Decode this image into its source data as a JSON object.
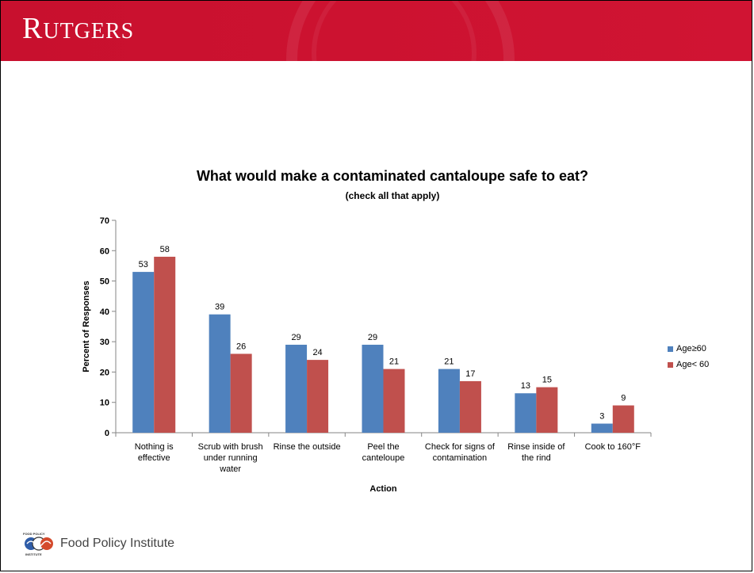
{
  "header": {
    "logo_text": "RUTGERS",
    "logo_first": "R",
    "logo_rest": "UTGERS"
  },
  "footer": {
    "institute": "Food Policy Institute",
    "logo_top": "FOOD POLICY",
    "logo_bottom": "INSTITUTE"
  },
  "colors": {
    "banner": "#c8102e",
    "series1": "#4f81bd",
    "series2": "#c0504d"
  },
  "chart_data": {
    "type": "bar",
    "title": "What would make a contaminated cantaloupe safe to eat?",
    "subtitle": "(check all that apply)",
    "xlabel": "Action",
    "ylabel": "Percent of Responses",
    "ylim": [
      0,
      70
    ],
    "yticks": [
      0,
      10,
      20,
      30,
      40,
      50,
      60,
      70
    ],
    "grid": false,
    "legend_position": "right",
    "categories": [
      [
        "Nothing is",
        "effective"
      ],
      [
        "Scrub with brush",
        "under running",
        "water"
      ],
      [
        "Rinse the outside"
      ],
      [
        "Peel the",
        "canteloupe"
      ],
      [
        "Check for signs of",
        "contamination"
      ],
      [
        "Rinse inside of",
        "the rind"
      ],
      [
        "Cook to 160°F"
      ]
    ],
    "series": [
      {
        "name": "Age≥60",
        "color": "#4f81bd",
        "values": [
          53,
          39,
          29,
          29,
          21,
          13,
          3
        ]
      },
      {
        "name": "Age< 60",
        "color": "#c0504d",
        "values": [
          58,
          26,
          24,
          21,
          17,
          15,
          9
        ]
      }
    ]
  }
}
